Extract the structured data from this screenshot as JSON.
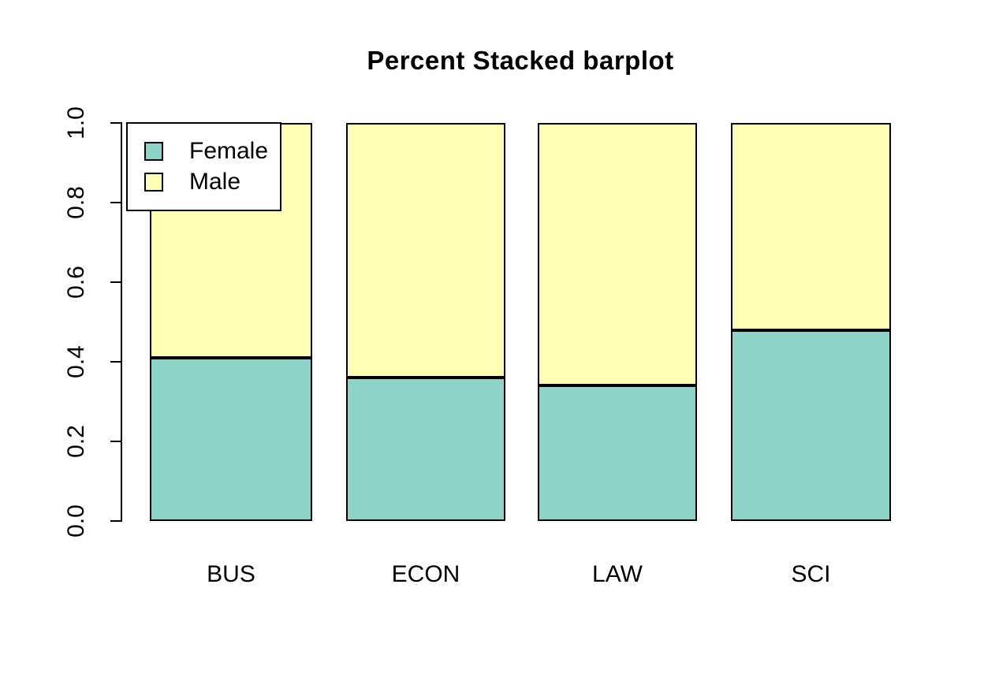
{
  "figure": {
    "title": "Percent Stacked barplot"
  },
  "chart_data": {
    "type": "bar",
    "subtype": "percent-stacked",
    "title": "Percent Stacked barplot",
    "categories": [
      "BUS",
      "ECON",
      "LAW",
      "SCI"
    ],
    "series": [
      {
        "name": "Female",
        "color": "#8dd3c7",
        "values": [
          0.41,
          0.36,
          0.34,
          0.48
        ]
      },
      {
        "name": "Male",
        "color": "#ffffb3",
        "values": [
          0.59,
          0.64,
          0.66,
          0.52
        ]
      }
    ],
    "stacked": true,
    "xlabel": "",
    "ylabel": "",
    "ylim": [
      0.0,
      1.0
    ],
    "yticks": [
      "0.0",
      "0.2",
      "0.4",
      "0.6",
      "0.8",
      "1.0"
    ],
    "ytick_values": [
      0.0,
      0.2,
      0.4,
      0.6,
      0.8,
      1.0
    ],
    "grid": false,
    "legend": {
      "position": "top-left",
      "entries": [
        "Female",
        "Male"
      ]
    },
    "bar_border_color": "#000000",
    "axis_color": "#000000",
    "background": "#ffffff"
  }
}
